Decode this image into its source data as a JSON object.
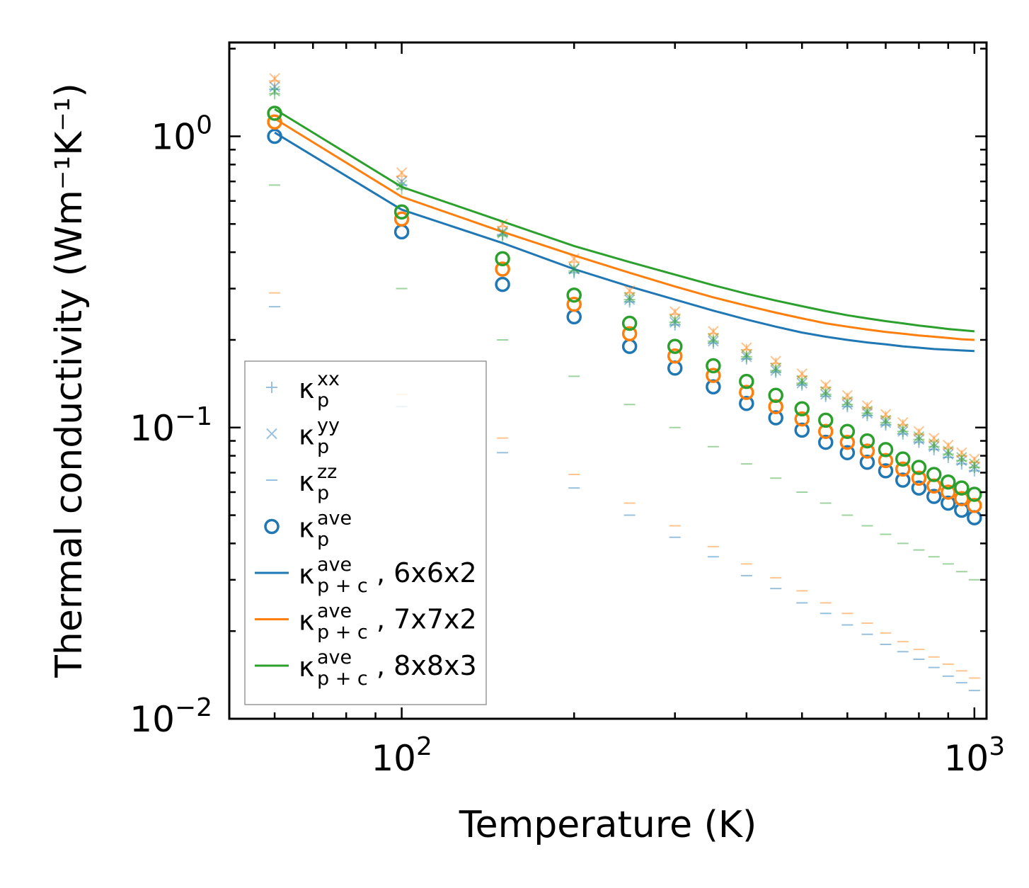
{
  "chart_data": {
    "type": "scatter",
    "xscale": "log",
    "yscale": "log",
    "xlim": [
      50,
      1050
    ],
    "ylim": [
      0.01,
      2.1
    ],
    "xlabel": "Temperature (K)",
    "ylabel": "Thermal conductivity (Wm⁻¹K⁻¹)",
    "xticks": [
      {
        "value": 100,
        "base": "10",
        "exp": "2"
      },
      {
        "value": 1000,
        "base": "10",
        "exp": "3"
      }
    ],
    "yticks": [
      {
        "value": 1,
        "base": "10",
        "exp": "0"
      },
      {
        "value": 0.1,
        "base": "10",
        "exp": "−1"
      },
      {
        "value": 0.01,
        "base": "10",
        "exp": "−2"
      }
    ],
    "legend_position": "lower-left",
    "colors": {
      "6x6x2": "#1f77b4",
      "7x7x2": "#ff7f0e",
      "8x8x3": "#2ca02c"
    },
    "x": [
      60,
      100,
      150,
      200,
      250,
      300,
      350,
      400,
      450,
      500,
      550,
      600,
      650,
      700,
      750,
      800,
      850,
      900,
      950,
      1000
    ],
    "series": [
      {
        "name": "6x6x2",
        "color": "#1f77b4",
        "k_xx": [
          1.45,
          0.68,
          0.46,
          0.34,
          0.27,
          0.225,
          0.195,
          0.172,
          0.155,
          0.14,
          0.128,
          0.118,
          0.11,
          0.102,
          0.095,
          0.089,
          0.084,
          0.079,
          0.075,
          0.071
        ],
        "k_yy": [
          1.48,
          0.7,
          0.47,
          0.35,
          0.275,
          0.23,
          0.198,
          0.175,
          0.157,
          0.142,
          0.13,
          0.12,
          0.112,
          0.104,
          0.097,
          0.091,
          0.086,
          0.081,
          0.077,
          0.073
        ],
        "k_zz": [
          0.26,
          0.118,
          0.082,
          0.062,
          0.05,
          0.042,
          0.036,
          0.031,
          0.028,
          0.025,
          0.023,
          0.021,
          0.0195,
          0.018,
          0.017,
          0.016,
          0.015,
          0.014,
          0.0133,
          0.0125
        ],
        "k_ave": [
          1.0,
          0.47,
          0.31,
          0.24,
          0.19,
          0.16,
          0.138,
          0.121,
          0.108,
          0.098,
          0.089,
          0.082,
          0.076,
          0.071,
          0.066,
          0.062,
          0.058,
          0.055,
          0.052,
          0.049
        ],
        "k_pc": [
          1.03,
          0.56,
          0.43,
          0.35,
          0.305,
          0.275,
          0.252,
          0.235,
          0.222,
          0.212,
          0.205,
          0.2,
          0.196,
          0.193,
          0.19,
          0.188,
          0.186,
          0.185,
          0.184,
          0.183
        ]
      },
      {
        "name": "7x7x2",
        "color": "#ff7f0e",
        "k_xx": [
          1.55,
          0.73,
          0.49,
          0.37,
          0.29,
          0.245,
          0.21,
          0.185,
          0.166,
          0.15,
          0.137,
          0.126,
          0.117,
          0.109,
          0.102,
          0.095,
          0.09,
          0.085,
          0.08,
          0.076
        ],
        "k_yy": [
          1.58,
          0.75,
          0.5,
          0.38,
          0.295,
          0.25,
          0.214,
          0.188,
          0.169,
          0.153,
          0.14,
          0.129,
          0.119,
          0.111,
          0.104,
          0.097,
          0.092,
          0.087,
          0.082,
          0.078
        ],
        "k_zz": [
          0.29,
          0.13,
          0.092,
          0.069,
          0.055,
          0.046,
          0.039,
          0.034,
          0.0305,
          0.0275,
          0.025,
          0.023,
          0.0213,
          0.0197,
          0.0184,
          0.0173,
          0.0163,
          0.0154,
          0.0146,
          0.0138
        ],
        "k_ave": [
          1.12,
          0.52,
          0.35,
          0.265,
          0.21,
          0.176,
          0.151,
          0.132,
          0.118,
          0.107,
          0.097,
          0.089,
          0.083,
          0.077,
          0.072,
          0.067,
          0.063,
          0.06,
          0.057,
          0.054
        ],
        "k_pc": [
          1.15,
          0.62,
          0.47,
          0.39,
          0.34,
          0.305,
          0.28,
          0.262,
          0.248,
          0.237,
          0.228,
          0.222,
          0.217,
          0.213,
          0.21,
          0.207,
          0.205,
          0.203,
          0.201,
          0.2
        ]
      },
      {
        "name": "8x8x3",
        "color": "#2ca02c",
        "k_xx": [
          1.4,
          0.66,
          0.455,
          0.345,
          0.275,
          0.23,
          0.198,
          0.175,
          0.157,
          0.142,
          0.13,
          0.12,
          0.112,
          0.104,
          0.097,
          0.091,
          0.086,
          0.081,
          0.077,
          0.073
        ],
        "k_yy": [
          1.43,
          0.68,
          0.465,
          0.352,
          0.28,
          0.235,
          0.202,
          0.178,
          0.16,
          0.145,
          0.133,
          0.123,
          0.114,
          0.106,
          0.099,
          0.093,
          0.088,
          0.083,
          0.079,
          0.075
        ],
        "k_zz": [
          0.68,
          0.3,
          0.2,
          0.15,
          0.12,
          0.1,
          0.086,
          0.075,
          0.067,
          0.06,
          0.055,
          0.05,
          0.046,
          0.043,
          0.04,
          0.038,
          0.036,
          0.034,
          0.032,
          0.03
        ],
        "k_ave": [
          1.2,
          0.55,
          0.38,
          0.285,
          0.228,
          0.19,
          0.163,
          0.144,
          0.129,
          0.116,
          0.106,
          0.097,
          0.09,
          0.084,
          0.078,
          0.073,
          0.069,
          0.065,
          0.062,
          0.059
        ],
        "k_pc": [
          1.24,
          0.67,
          0.51,
          0.42,
          0.37,
          0.335,
          0.308,
          0.288,
          0.273,
          0.261,
          0.251,
          0.243,
          0.237,
          0.232,
          0.228,
          0.224,
          0.221,
          0.218,
          0.216,
          0.214
        ]
      }
    ],
    "legend": [
      {
        "key": "xx",
        "marker": "plus",
        "color": "#1f77b4",
        "symbol": "κ",
        "sub": "p",
        "sup": "xx",
        "suffix": ""
      },
      {
        "key": "yy",
        "marker": "x",
        "color": "#1f77b4",
        "symbol": "κ",
        "sub": "p",
        "sup": "yy",
        "suffix": ""
      },
      {
        "key": "zz",
        "marker": "dash",
        "color": "#1f77b4",
        "symbol": "κ",
        "sub": "p",
        "sup": "zz",
        "suffix": ""
      },
      {
        "key": "ave",
        "marker": "circle",
        "color": "#1f77b4",
        "symbol": "κ",
        "sub": "p",
        "sup": "ave",
        "suffix": ""
      },
      {
        "key": "pc662",
        "marker": "line",
        "color": "#1f77b4",
        "symbol": "κ",
        "sub": "p + c",
        "sup": "ave",
        "suffix": ", 6x6x2"
      },
      {
        "key": "pc772",
        "marker": "line",
        "color": "#ff7f0e",
        "symbol": "κ",
        "sub": "p + c",
        "sup": "ave",
        "suffix": ", 7x7x2"
      },
      {
        "key": "pc883",
        "marker": "line",
        "color": "#2ca02c",
        "symbol": "κ",
        "sub": "p + c",
        "sup": "ave",
        "suffix": ", 8x8x3"
      }
    ]
  }
}
